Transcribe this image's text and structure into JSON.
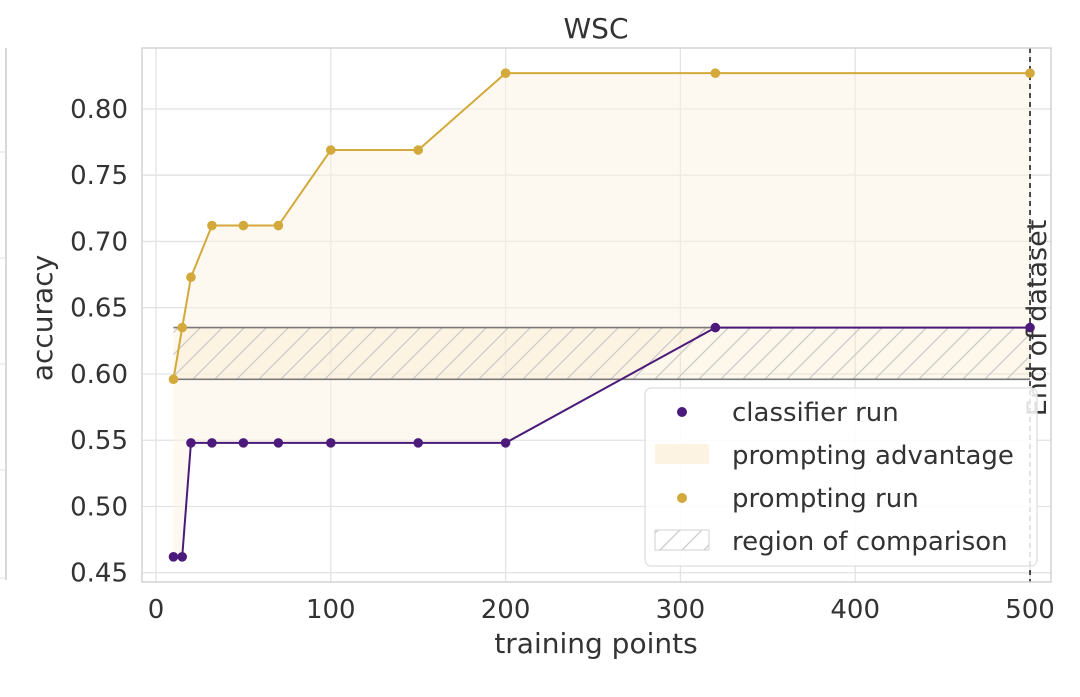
{
  "chart_data": {
    "type": "line",
    "title": "WSC",
    "xlabel": "training points",
    "ylabel": "accuracy",
    "xlim": [
      -8,
      512
    ],
    "ylim": [
      0.443,
      0.846
    ],
    "x_ticks": [
      0,
      100,
      200,
      300,
      400,
      500
    ],
    "x_tick_labels": [
      "0",
      "100",
      "200",
      "300",
      "400",
      "500"
    ],
    "y_ticks": [
      0.45,
      0.5,
      0.55,
      0.6,
      0.65,
      0.7,
      0.75,
      0.8
    ],
    "y_tick_labels": [
      "0.45",
      "0.50",
      "0.55",
      "0.60",
      "0.65",
      "0.70",
      "0.75",
      "0.80"
    ],
    "grid": true,
    "legend_position": "lower-right",
    "series": [
      {
        "name": "classifier run",
        "color": "#4b1a7a",
        "points": [
          [
            10,
            0.462
          ],
          [
            15,
            0.462
          ],
          [
            20,
            0.548
          ],
          [
            32,
            0.548
          ],
          [
            50,
            0.548
          ],
          [
            70,
            0.548
          ],
          [
            100,
            0.548
          ],
          [
            150,
            0.548
          ],
          [
            200,
            0.548
          ],
          [
            320,
            0.635
          ],
          [
            500,
            0.635
          ]
        ]
      },
      {
        "name": "prompting run",
        "color": "#d4a93c",
        "points": [
          [
            10,
            0.596
          ],
          [
            15,
            0.635
          ],
          [
            20,
            0.673
          ],
          [
            32,
            0.712
          ],
          [
            50,
            0.712
          ],
          [
            70,
            0.712
          ],
          [
            100,
            0.769
          ],
          [
            150,
            0.769
          ],
          [
            200,
            0.827
          ],
          [
            320,
            0.827
          ],
          [
            500,
            0.827
          ]
        ]
      }
    ],
    "prompting_advantage": {
      "label": "prompting advantage",
      "color": "#fdf3e2"
    },
    "region_of_comparison": {
      "label": "region of comparison",
      "y_range": [
        0.596,
        0.635
      ]
    },
    "end_of_dataset": {
      "x": 500,
      "label": "End of dataset"
    }
  }
}
